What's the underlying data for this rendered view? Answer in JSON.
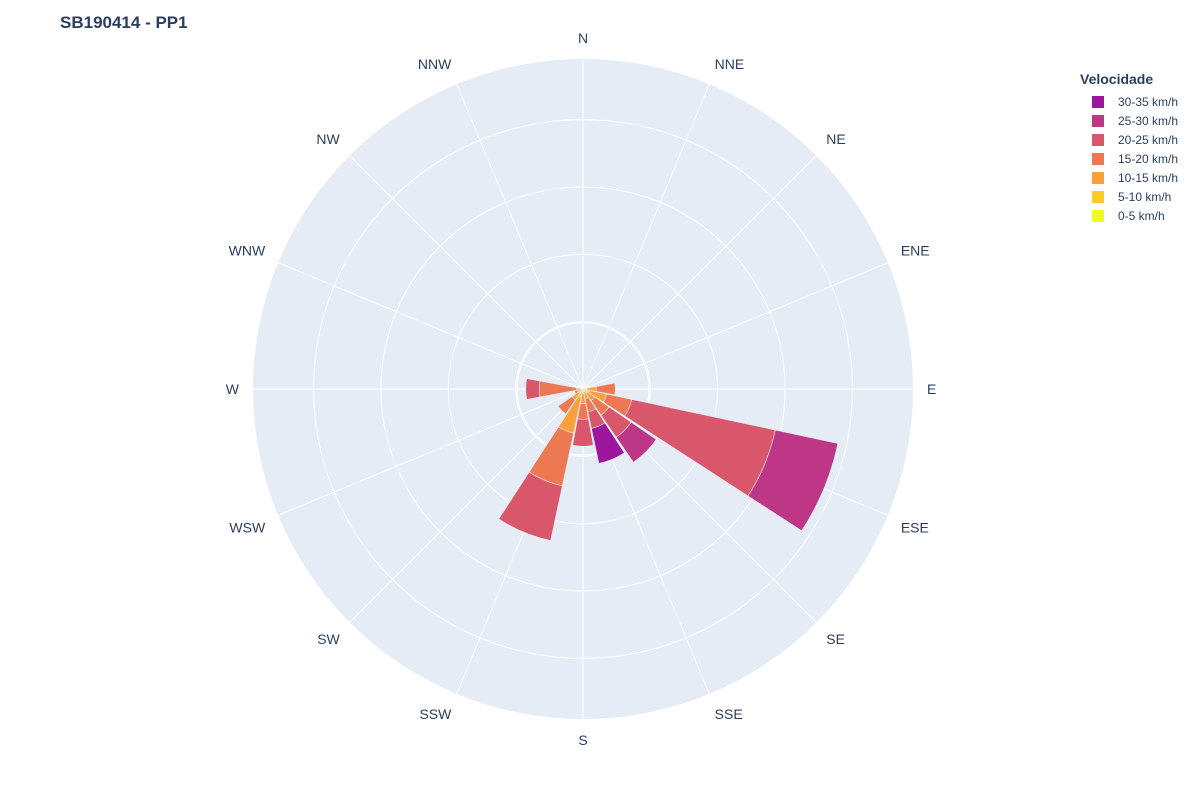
{
  "title": "SB190414 - PP1",
  "legend": {
    "title": "Velocidade",
    "items": [
      {
        "label": "30-35 km/h",
        "color": "#9c179e"
      },
      {
        "label": "25-30 km/h",
        "color": "#bd3786"
      },
      {
        "label": "20-25 km/h",
        "color": "#d8576b"
      },
      {
        "label": "15-20 km/h",
        "color": "#ed7953"
      },
      {
        "label": "10-15 km/h",
        "color": "#fb9f3a"
      },
      {
        "label": "5-10 km/h",
        "color": "#fdca26"
      },
      {
        "label": "0-5 km/h",
        "color": "#f0f921"
      }
    ]
  },
  "chart_data": {
    "type": "barpolar",
    "title": "SB190414 - PP1",
    "directions": [
      "N",
      "NNE",
      "NE",
      "ENE",
      "E",
      "ESE",
      "SE",
      "SSE",
      "S",
      "SSW",
      "SW",
      "WSW",
      "W",
      "WNW",
      "NW",
      "NNW"
    ],
    "radial_range": [
      0,
      4.9
    ],
    "legend_title": "Velocidade",
    "legend_position": "top-right",
    "series": [
      {
        "name": "0-5 km/h",
        "color": "#f0f921",
        "values": [
          0,
          0,
          0,
          0,
          0,
          0.03,
          0.02,
          0,
          0.02,
          0.03,
          0.02,
          0,
          0,
          0,
          0,
          0
        ]
      },
      {
        "name": "5-10 km/h",
        "color": "#fdca26",
        "values": [
          0,
          0,
          0,
          0,
          0.06,
          0.07,
          0.05,
          0.04,
          0.05,
          0.09,
          0.06,
          0.03,
          0.03,
          0,
          0,
          0
        ]
      },
      {
        "name": "10-15 km/h",
        "color": "#fb9f3a",
        "values": [
          0,
          0,
          0,
          0,
          0.14,
          0.26,
          0.14,
          0.11,
          0.15,
          0.55,
          0.12,
          0.05,
          0.07,
          0,
          0,
          0
        ]
      },
      {
        "name": "15-20 km/h",
        "color": "#ed7953",
        "values": [
          0,
          0,
          0,
          0,
          0.28,
          0.38,
          0.26,
          0.2,
          0.23,
          0.8,
          0.25,
          0.05,
          0.55,
          0,
          0,
          0
        ]
      },
      {
        "name": "20-25 km/h",
        "color": "#d8576b",
        "values": [
          0,
          0,
          0,
          0,
          0,
          2.18,
          0.4,
          0.25,
          0.4,
          0.83,
          0,
          0,
          0.2,
          0,
          0,
          0
        ]
      },
      {
        "name": "25-30 km/h",
        "color": "#bd3786",
        "values": [
          0,
          0,
          0,
          0,
          0,
          0.95,
          0.45,
          0,
          0,
          0,
          0,
          0,
          0,
          0,
          0,
          0
        ]
      },
      {
        "name": "30-35 km/h",
        "color": "#9c179e",
        "values": [
          0,
          0,
          0,
          0,
          0,
          0,
          0,
          0.53,
          0,
          0,
          0,
          0,
          0,
          0,
          0,
          0
        ]
      }
    ]
  }
}
